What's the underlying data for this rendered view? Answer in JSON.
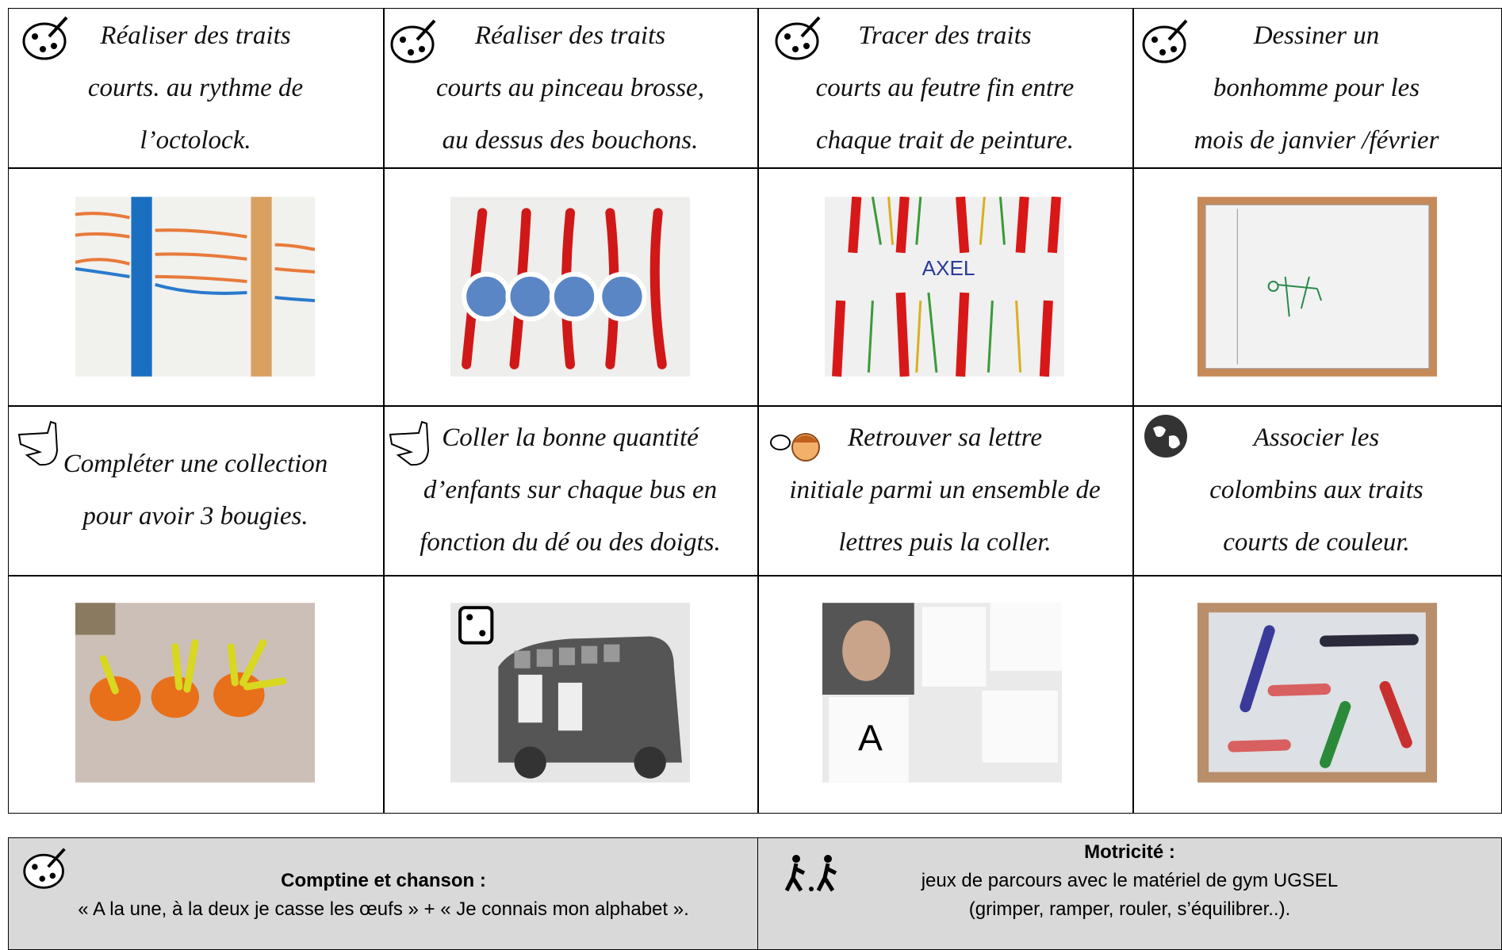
{
  "activities": [
    {
      "lines": [
        "Réaliser des traits",
        "courts. au rythme de",
        "l’octolock."
      ]
    },
    {
      "lines": [
        "Réaliser des traits",
        "courts au pinceau brosse,",
        "au dessus des bouchons."
      ]
    },
    {
      "lines": [
        "Tracer des traits",
        "courts au feutre fin entre",
        "chaque trait de peinture."
      ],
      "photo_text": "AXEL"
    },
    {
      "lines": [
        "Dessiner un",
        "bonhomme pour les",
        "mois de janvier /février"
      ]
    },
    {
      "lines": [
        "Compléter une collection",
        "pour avoir 3 bougies."
      ]
    },
    {
      "lines": [
        "Coller la bonne quantité",
        "d’enfants sur chaque bus en",
        "fonction du dé ou des doigts."
      ]
    },
    {
      "lines": [
        "Retrouver sa lettre",
        "initiale parmi un ensemble de",
        "lettres puis la coller."
      ],
      "photo_text": "A"
    },
    {
      "lines": [
        "Associer les",
        "colombins aux traits",
        "courts de couleur."
      ]
    }
  ],
  "footer": {
    "left": {
      "title": "Comptine et chanson :",
      "text": "« A la une, à  la deux je casse les œufs » + « Je connais mon alphabet »."
    },
    "right": {
      "title": "Motricité :",
      "lines": [
        "jeux de parcours avec le matériel de gym UGSEL",
        "(grimper, ramper, rouler, s’équilibrer..)."
      ]
    }
  }
}
